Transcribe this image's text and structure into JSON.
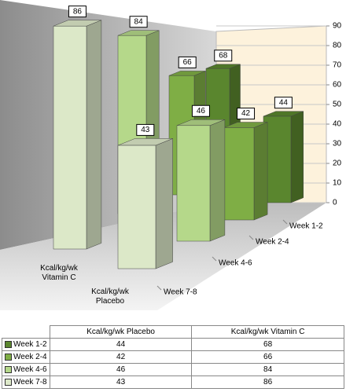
{
  "chart_data": {
    "type": "bar3d",
    "categories": [
      "Kcal/kg/wk Placebo",
      "Kcal/kg/wk Vitamin C"
    ],
    "series": [
      {
        "name": "Week 1-2",
        "color": "#5a862e",
        "values": [
          44,
          68
        ]
      },
      {
        "name": "Week 2-4",
        "color": "#7fae45",
        "values": [
          42,
          66
        ]
      },
      {
        "name": "Week 4-6",
        "color": "#b5d88a",
        "values": [
          46,
          84
        ]
      },
      {
        "name": "Week 7-8",
        "color": "#dce8c8",
        "values": [
          43,
          86
        ]
      }
    ],
    "ylim": [
      0,
      90
    ],
    "yticks": [
      0,
      10,
      20,
      30,
      40,
      50,
      60,
      70,
      80,
      90
    ],
    "grid": true,
    "legend": "table"
  }
}
